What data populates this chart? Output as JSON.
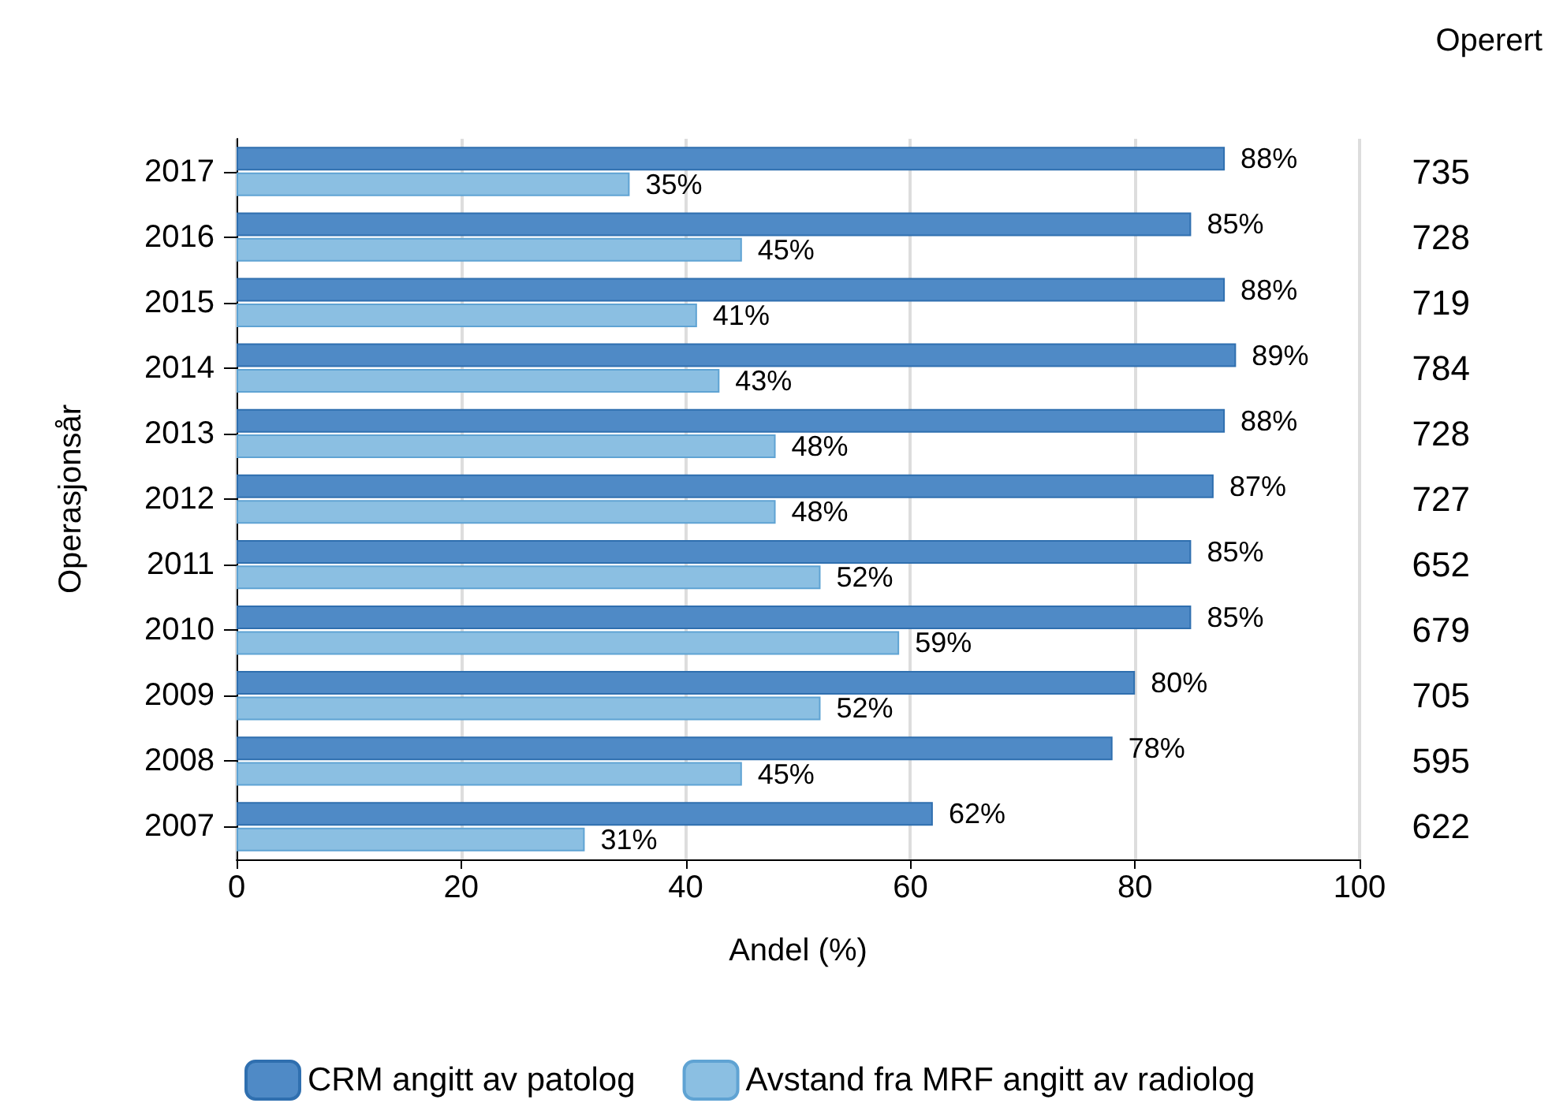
{
  "chart_data": {
    "type": "bar",
    "orientation": "horizontal",
    "ylabel": "Operasjonsår",
    "xlabel": "Andel (%)",
    "categories": [
      "2017",
      "2016",
      "2015",
      "2014",
      "2013",
      "2012",
      "2011",
      "2010",
      "2009",
      "2008",
      "2007"
    ],
    "series": [
      {
        "name": "CRM angitt av patolog",
        "color": "#4f8ac6",
        "values": [
          88,
          85,
          88,
          89,
          88,
          87,
          85,
          85,
          80,
          78,
          62
        ],
        "value_labels": [
          "88%",
          "85%",
          "88%",
          "89%",
          "88%",
          "87%",
          "85%",
          "85%",
          "80%",
          "78%",
          "62%"
        ]
      },
      {
        "name": "Avstand fra MRF angitt av radiolog",
        "color": "#8bbfe2",
        "values": [
          35,
          45,
          41,
          43,
          48,
          48,
          52,
          59,
          52,
          45,
          31
        ],
        "value_labels": [
          "35%",
          "45%",
          "41%",
          "43%",
          "48%",
          "48%",
          "52%",
          "59%",
          "52%",
          "45%",
          "31%"
        ]
      }
    ],
    "xlim": [
      0,
      100
    ],
    "xticks": [
      0,
      20,
      40,
      60,
      80,
      100
    ],
    "grid": "x",
    "legend": "bottom",
    "annotations": [
      "Operert",
      "735",
      "728",
      "719",
      "784",
      "728",
      "727",
      "652",
      "679",
      "705",
      "595",
      "622"
    ]
  }
}
